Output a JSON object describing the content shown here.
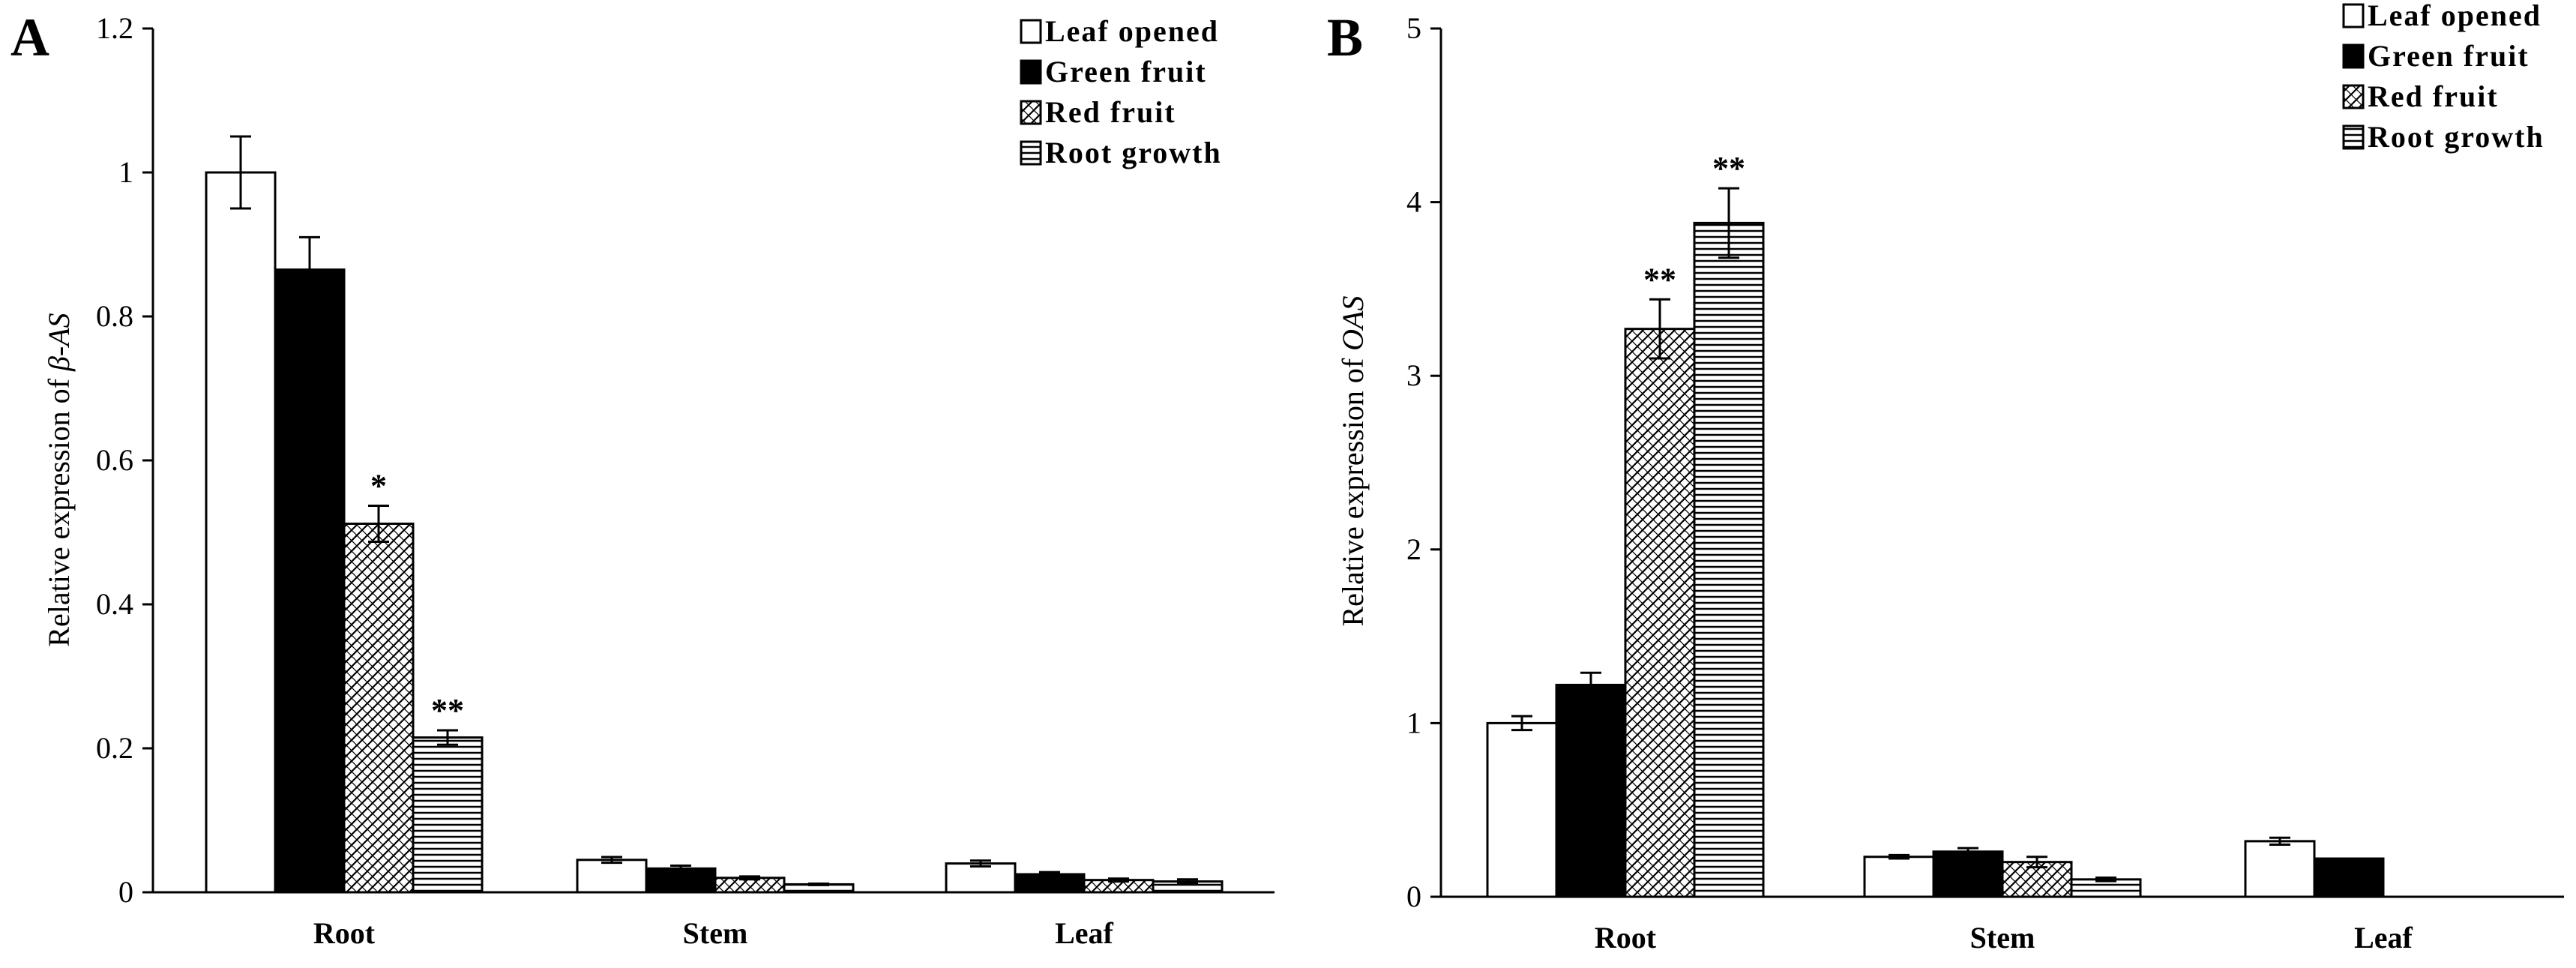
{
  "chart_data": [
    {
      "panel": "A",
      "type": "bar",
      "ylabel": "Relative expression of β-AS",
      "ylabel_prefix": "Relative expression of ",
      "ylabel_gene": "β-AS",
      "ylim": [
        0,
        1.2
      ],
      "yticks": [
        0,
        0.2,
        0.4,
        0.6,
        0.8,
        1.0,
        1.2
      ],
      "ytick_labels": [
        "0",
        "0.2",
        "0.4",
        "0.6",
        "0.8",
        "1",
        "1.2"
      ],
      "categories": [
        "Root",
        "Stem",
        "Leaf"
      ],
      "legend": [
        "Leaf opened",
        "Green fruit",
        "Red fruit",
        "Root growth"
      ],
      "series": [
        {
          "name": "Leaf opened",
          "values": [
            1.0,
            0.045,
            0.04
          ],
          "errors": [
            0.05,
            0.004,
            0.004
          ],
          "marks": [
            "",
            "",
            ""
          ]
        },
        {
          "name": "Green fruit",
          "values": [
            0.865,
            0.033,
            0.025
          ],
          "errors": [
            0.045,
            0.004,
            0.003
          ],
          "marks": [
            "",
            "",
            ""
          ]
        },
        {
          "name": "Red fruit",
          "values": [
            0.512,
            0.02,
            0.017
          ],
          "errors": [
            0.025,
            0.002,
            0.002
          ],
          "marks": [
            "*",
            "",
            ""
          ]
        },
        {
          "name": "Root growth",
          "values": [
            0.215,
            0.011,
            0.015
          ],
          "errors": [
            0.01,
            0.001,
            0.003
          ],
          "marks": [
            "**",
            "",
            ""
          ]
        }
      ]
    },
    {
      "panel": "B",
      "type": "bar",
      "ylabel": "Relative expression of OAS",
      "ylabel_prefix": "Relative expression of ",
      "ylabel_gene": "OAS",
      "ylim": [
        0,
        5
      ],
      "yticks": [
        0,
        1,
        2,
        3,
        4,
        5
      ],
      "ytick_labels": [
        "0",
        "1",
        "2",
        "3",
        "4",
        "5"
      ],
      "categories": [
        "Root",
        "Stem",
        "Leaf"
      ],
      "legend": [
        "Leaf opened",
        "Green fruit",
        "Red fruit",
        "Root growth"
      ],
      "series": [
        {
          "name": "Leaf opened",
          "values": [
            1.0,
            0.23,
            0.32
          ],
          "errors": [
            0.04,
            0.01,
            0.02
          ],
          "marks": [
            "",
            "",
            ""
          ]
        },
        {
          "name": "Green fruit",
          "values": [
            1.22,
            0.26,
            0.22
          ],
          "errors": [
            0.07,
            0.02,
            0.0
          ],
          "marks": [
            "",
            "",
            ""
          ]
        },
        {
          "name": "Red fruit",
          "values": [
            3.27,
            0.2,
            0.0
          ],
          "errors": [
            0.17,
            0.03,
            0.0
          ],
          "marks": [
            "**",
            "",
            ""
          ]
        },
        {
          "name": "Root growth",
          "values": [
            3.88,
            0.1,
            0.0
          ],
          "errors": [
            0.2,
            0.01,
            0.0
          ],
          "marks": [
            "**",
            "",
            ""
          ]
        }
      ]
    }
  ]
}
